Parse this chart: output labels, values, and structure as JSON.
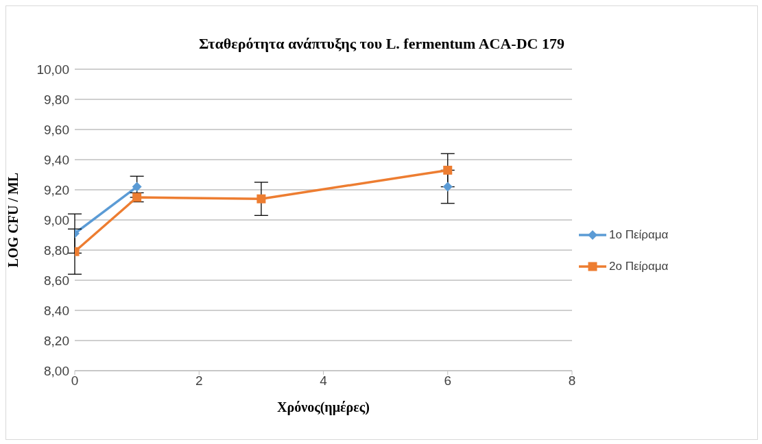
{
  "chart_data": {
    "type": "line",
    "title": "Σταθερότητα ανάπτυξης του  L. fermentum ACA-DC 179",
    "xlabel": "Χρόνος(ημέρες)",
    "ylabel": "LOG CFU / ML",
    "x": [
      0,
      1,
      3,
      6
    ],
    "series": [
      {
        "name": "1ο Πείραμα",
        "color": "#5b9bd5",
        "marker": "diamond",
        "values": [
          8.91,
          9.22,
          null,
          9.22
        ],
        "errors": [
          0.13,
          0.07,
          null,
          0.11
        ]
      },
      {
        "name": "2ο Πείραμα",
        "color": "#ed7d31",
        "marker": "square",
        "values": [
          8.79,
          9.15,
          9.14,
          9.33
        ],
        "errors": [
          0.15,
          0.03,
          0.11,
          0.11
        ]
      }
    ],
    "xlim": [
      0,
      8
    ],
    "xticks": [
      0,
      2,
      4,
      6,
      8
    ],
    "ylim": [
      8,
      10
    ],
    "yticks": [
      {
        "value": 8,
        "label": "8,00"
      },
      {
        "value": 8.2,
        "label": "8,20"
      },
      {
        "value": 8.4,
        "label": "8,40"
      },
      {
        "value": 8.6,
        "label": "8,60"
      },
      {
        "value": 8.8,
        "label": "8,80"
      },
      {
        "value": 9,
        "label": "9,00"
      },
      {
        "value": 9.2,
        "label": "9,20"
      },
      {
        "value": 9.4,
        "label": "9,40"
      },
      {
        "value": 9.6,
        "label": "9,60"
      },
      {
        "value": 9.8,
        "label": "9,80"
      },
      {
        "value": 10,
        "label": "10,00"
      }
    ],
    "grid": "y",
    "legend": "right",
    "line_style": "solid"
  }
}
